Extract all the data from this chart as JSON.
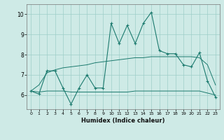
{
  "x": [
    0,
    1,
    2,
    3,
    4,
    5,
    6,
    7,
    8,
    9,
    10,
    11,
    12,
    13,
    14,
    15,
    16,
    17,
    18,
    19,
    20,
    21,
    22,
    23
  ],
  "y_main": [
    6.2,
    6.05,
    7.2,
    7.2,
    6.35,
    5.55,
    6.35,
    7.0,
    6.35,
    6.35,
    9.55,
    8.55,
    9.45,
    8.55,
    9.55,
    10.1,
    8.2,
    8.05,
    8.05,
    7.5,
    7.4,
    8.1,
    6.7,
    5.9
  ],
  "y_upper": [
    6.2,
    6.5,
    7.1,
    7.25,
    7.35,
    7.4,
    7.45,
    7.5,
    7.6,
    7.65,
    7.7,
    7.75,
    7.8,
    7.85,
    7.85,
    7.9,
    7.9,
    7.9,
    7.9,
    7.9,
    7.9,
    7.85,
    7.5,
    6.5
  ],
  "y_lower": [
    6.2,
    6.15,
    6.2,
    6.2,
    6.2,
    6.15,
    6.15,
    6.15,
    6.15,
    6.15,
    6.15,
    6.15,
    6.15,
    6.2,
    6.2,
    6.2,
    6.2,
    6.2,
    6.2,
    6.2,
    6.2,
    6.2,
    6.1,
    6.0
  ],
  "color_main": "#1b7a6e",
  "color_band": "#1b7a6e",
  "bg_color": "#ceeae6",
  "grid_color": "#9ecec8",
  "xlabel": "Humidex (Indice chaleur)",
  "ylim": [
    5.3,
    10.5
  ],
  "xlim": [
    -0.5,
    23.5
  ],
  "yticks": [
    6,
    7,
    8,
    9,
    10
  ],
  "xticks": [
    0,
    1,
    2,
    3,
    4,
    5,
    6,
    7,
    8,
    9,
    10,
    11,
    12,
    13,
    14,
    15,
    16,
    17,
    18,
    19,
    20,
    21,
    22,
    23
  ]
}
